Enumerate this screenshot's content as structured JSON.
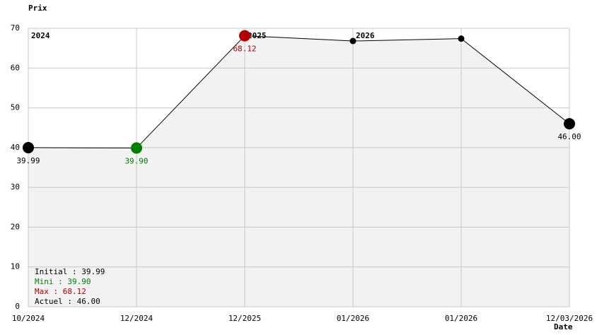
{
  "chart_data": {
    "type": "line",
    "y_label": "Prix",
    "x_label": "Date",
    "categories": [
      "10/2024",
      "12/2024",
      "12/2025",
      "01/2026",
      "01/2026",
      "12/03/2026"
    ],
    "year_labels": [
      "2024",
      null,
      "2025",
      "2026",
      null,
      null
    ],
    "values": [
      39.99,
      39.9,
      68.12,
      66.8,
      67.4,
      46.0
    ],
    "value_labels": [
      "39.99",
      "39.90",
      "68.12",
      null,
      null,
      "46.00"
    ],
    "point_colors": [
      "#000000",
      "#008000",
      "#b00000",
      "#000000",
      "#000000",
      "#000000"
    ],
    "line_color": "#000000",
    "area_color": "#f2f2f2",
    "grid": true,
    "ylim": [
      0,
      70
    ],
    "yticks": [
      0,
      10,
      20,
      30,
      40,
      50,
      60,
      70
    ],
    "legend": [
      {
        "text": "Initial : 39.99",
        "color": "#000000"
      },
      {
        "text": "Mini : 39.90",
        "color": "#008000"
      },
      {
        "text": "Max : 68.12",
        "color": "#b00000"
      },
      {
        "text": "Actuel : 46.00",
        "color": "#000000"
      }
    ]
  }
}
